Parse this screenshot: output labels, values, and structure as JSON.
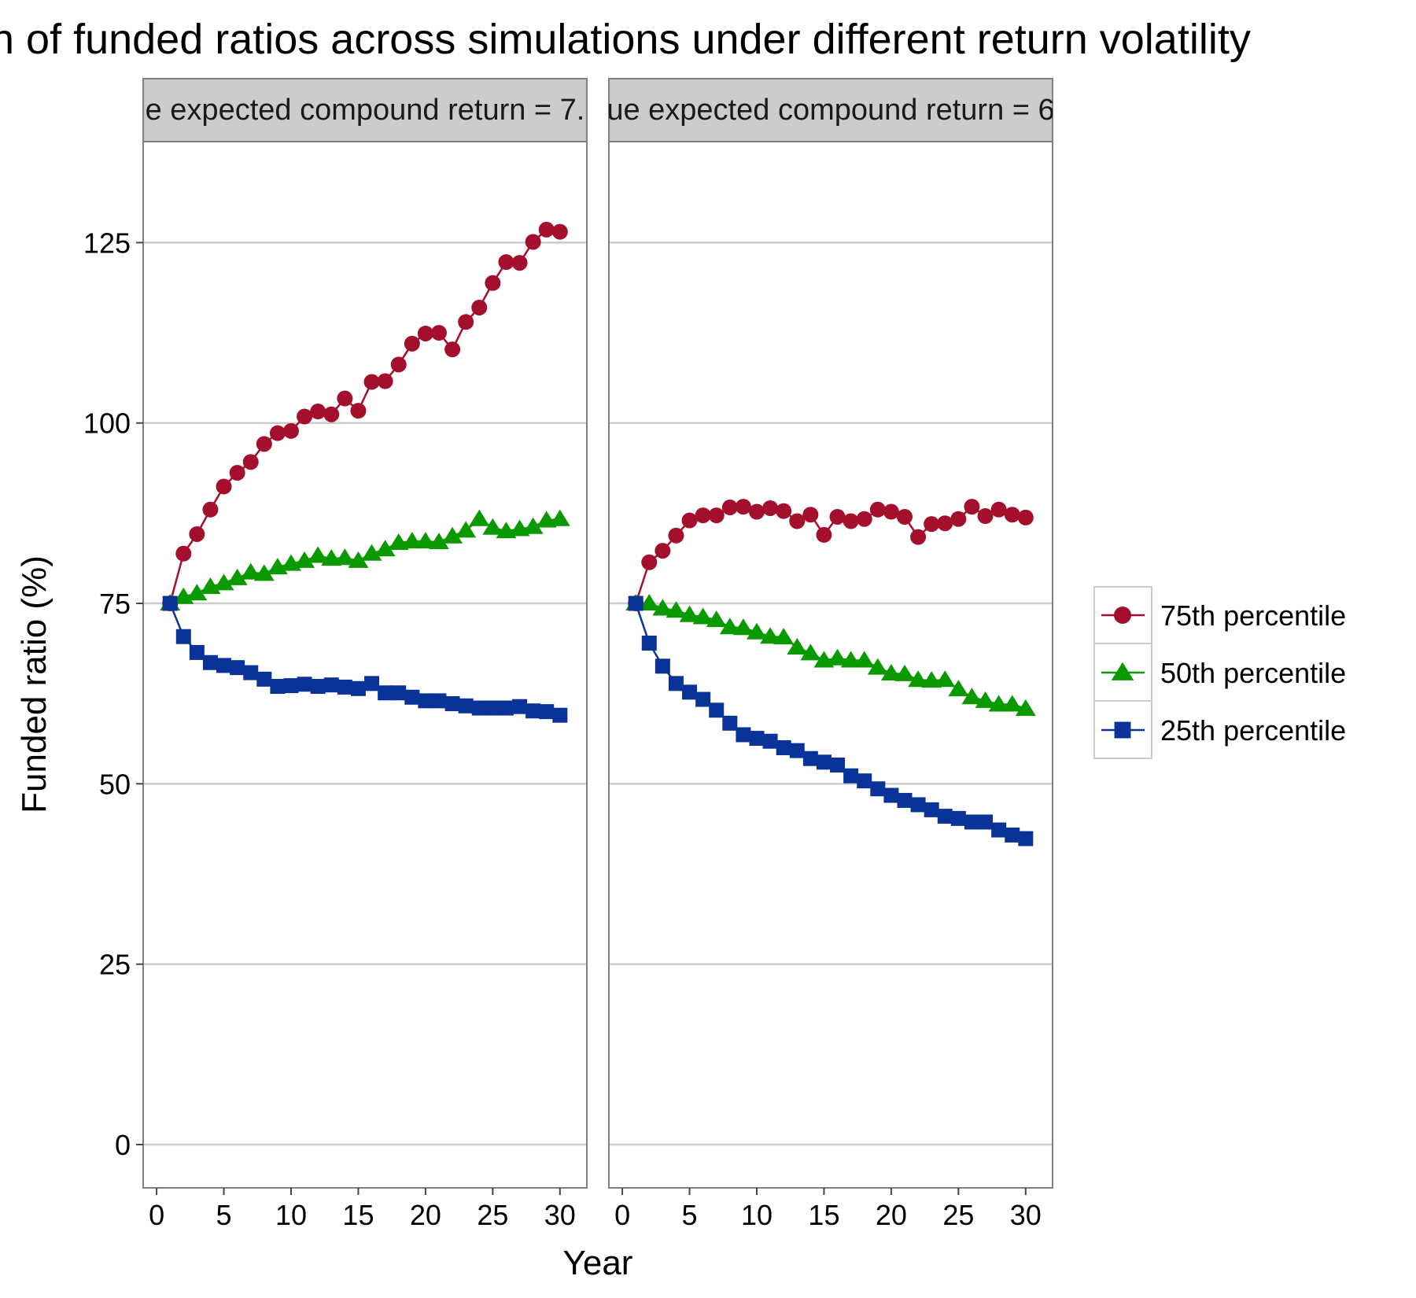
{
  "chart_data": {
    "type": "line",
    "title": "n of funded ratios across simulations under different return volatility",
    "xlabel": "Year",
    "ylabel": "Funded ratio (%)",
    "xlim": [
      -1,
      32
    ],
    "ylim": [
      -6,
      139
    ],
    "x_ticks": [
      0,
      5,
      10,
      15,
      20,
      25,
      30
    ],
    "y_ticks": [
      0,
      25,
      50,
      75,
      100,
      125
    ],
    "grid": "horizontal major",
    "legend_position": "right",
    "x": [
      1,
      2,
      3,
      4,
      5,
      6,
      7,
      8,
      9,
      10,
      11,
      12,
      13,
      14,
      15,
      16,
      17,
      18,
      19,
      20,
      21,
      22,
      23,
      24,
      25,
      26,
      27,
      28,
      29,
      30
    ],
    "panels": [
      {
        "strip_label": "e expected compound return = 7.",
        "series": [
          {
            "name": "75th percentile",
            "color": "#A50F2E",
            "marker": "circle",
            "values": [
              75,
              81.9,
              84.6,
              88,
              91.2,
              93.1,
              94.6,
              97.1,
              98.6,
              98.9,
              100.9,
              101.6,
              101.2,
              103.4,
              101.7,
              105.7,
              105.8,
              108.1,
              111,
              112.4,
              112.5,
              110.2,
              114,
              116,
              119.4,
              122.3,
              122.2,
              125.1,
              126.8,
              126.5
            ]
          },
          {
            "name": "50th percentile",
            "color": "#0B9900",
            "marker": "triangle",
            "values": [
              75,
              75.9,
              76.4,
              77.3,
              77.8,
              78.5,
              79.3,
              79.1,
              80,
              80.5,
              80.9,
              81.6,
              81.2,
              81.3,
              80.9,
              81.9,
              82.5,
              83.4,
              83.6,
              83.6,
              83.5,
              84.3,
              85.1,
              86.7,
              85.5,
              85,
              85.3,
              85.6,
              86.5,
              86.7
            ]
          },
          {
            "name": "25th percentile",
            "color": "#0A3399",
            "marker": "square",
            "values": [
              75,
              70.4,
              68.2,
              66.8,
              66.4,
              66.1,
              65.4,
              64.5,
              63.5,
              63.6,
              63.8,
              63.5,
              63.7,
              63.4,
              63.2,
              63.9,
              62.6,
              62.6,
              62,
              61.5,
              61.5,
              61.1,
              60.8,
              60.5,
              60.5,
              60.5,
              60.7,
              60.1,
              60,
              59.5
            ]
          }
        ]
      },
      {
        "strip_label": "ue expected compound return = 6",
        "series": [
          {
            "name": "75th percentile",
            "color": "#A50F2E",
            "marker": "circle",
            "values": [
              75,
              80.7,
              82.3,
              84.4,
              86.5,
              87.2,
              87.2,
              88.3,
              88.4,
              87.7,
              88.2,
              87.8,
              86.4,
              87.3,
              84.5,
              87,
              86.4,
              86.7,
              88,
              87.7,
              87,
              84.2,
              86,
              86.1,
              86.7,
              88.4,
              87.1,
              88,
              87.3,
              86.9
            ]
          },
          {
            "name": "50th percentile",
            "color": "#0B9900",
            "marker": "triangle",
            "values": [
              75,
              75,
              74.3,
              74,
              73.4,
              73.1,
              72.7,
              71.7,
              71.6,
              71,
              70.4,
              70.3,
              68.9,
              68.1,
              67.1,
              67.4,
              67.1,
              67.1,
              66.1,
              65.3,
              65.2,
              64.4,
              64.3,
              64.4,
              63.1,
              62,
              61.5,
              61,
              61,
              60.4
            ]
          },
          {
            "name": "25th percentile",
            "color": "#0A3399",
            "marker": "square",
            "values": [
              75,
              69.5,
              66.3,
              63.9,
              62.7,
              61.7,
              60.2,
              58.4,
              56.8,
              56.3,
              55.9,
              55,
              54.6,
              53.5,
              53,
              52.6,
              51.1,
              50.4,
              49.3,
              48.4,
              47.7,
              47.1,
              46.4,
              45.5,
              45.2,
              44.7,
              44.7,
              43.6,
              42.9,
              42.4
            ]
          }
        ]
      }
    ],
    "legend": [
      {
        "label": "75th percentile",
        "color": "#A50F2E",
        "marker": "circle"
      },
      {
        "label": "50th percentile",
        "color": "#0B9900",
        "marker": "triangle"
      },
      {
        "label": "25th percentile",
        "color": "#0A3399",
        "marker": "square"
      }
    ]
  }
}
